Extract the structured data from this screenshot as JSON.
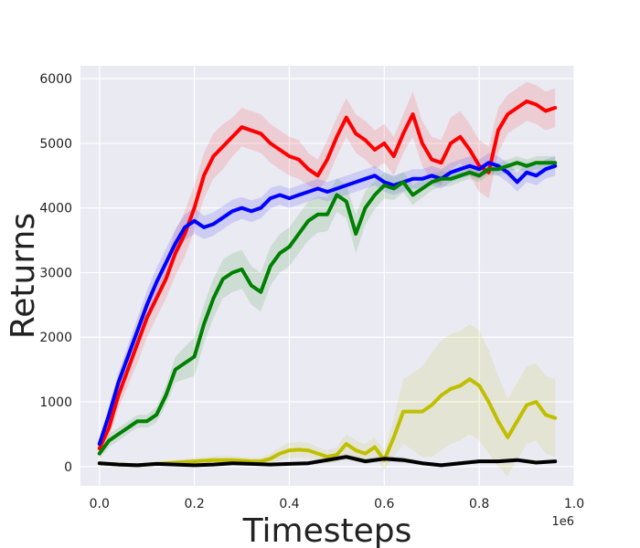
{
  "chart_data": {
    "type": "line",
    "title": "",
    "xlabel": "Timesteps",
    "ylabel": "Returns",
    "x_offset_label": "1e6",
    "xlim": [
      -0.04,
      1.0
    ],
    "ylim": [
      -300,
      6200
    ],
    "xticks": [
      0.0,
      0.2,
      0.4,
      0.6,
      0.8,
      1.0
    ],
    "xtick_labels": [
      "0.0",
      "0.2",
      "0.4",
      "0.6",
      "0.8",
      "1.0"
    ],
    "yticks": [
      0,
      1000,
      2000,
      3000,
      4000,
      5000,
      6000
    ],
    "ytick_labels": [
      "0",
      "1000",
      "2000",
      "3000",
      "4000",
      "5000",
      "6000"
    ],
    "grid": true,
    "background": "#EAEAF2",
    "series": [
      {
        "color": "#FF0000",
        "x": [
          0.0,
          0.02,
          0.04,
          0.06,
          0.08,
          0.1,
          0.12,
          0.14,
          0.16,
          0.18,
          0.2,
          0.22,
          0.24,
          0.26,
          0.28,
          0.3,
          0.32,
          0.34,
          0.36,
          0.38,
          0.4,
          0.42,
          0.44,
          0.46,
          0.48,
          0.5,
          0.52,
          0.54,
          0.56,
          0.58,
          0.6,
          0.62,
          0.64,
          0.66,
          0.68,
          0.7,
          0.72,
          0.74,
          0.76,
          0.78,
          0.8,
          0.82,
          0.84,
          0.86,
          0.88,
          0.9,
          0.92,
          0.94,
          0.96
        ],
        "y": [
          280,
          600,
          1100,
          1500,
          1900,
          2300,
          2600,
          2900,
          3300,
          3600,
          4000,
          4500,
          4800,
          4950,
          5100,
          5250,
          5200,
          5150,
          5000,
          4900,
          4800,
          4750,
          4600,
          4500,
          4750,
          5100,
          5400,
          5150,
          5050,
          4900,
          5000,
          4800,
          5150,
          5450,
          5000,
          4750,
          4700,
          5000,
          5100,
          4900,
          4650,
          4550,
          5200,
          5450,
          5550,
          5650,
          5600,
          5500,
          5550
        ],
        "band": [
          100,
          150,
          200,
          250,
          300,
          300,
          300,
          300,
          350,
          350,
          350,
          350,
          350,
          350,
          300,
          300,
          300,
          300,
          300,
          300,
          300,
          300,
          250,
          250,
          300,
          300,
          300,
          300,
          300,
          300,
          300,
          300,
          300,
          350,
          350,
          350,
          350,
          400,
          400,
          400,
          400,
          400,
          350,
          300,
          300,
          300,
          300,
          300,
          300
        ]
      },
      {
        "color": "#0000FF",
        "x": [
          0.0,
          0.02,
          0.04,
          0.06,
          0.08,
          0.1,
          0.12,
          0.14,
          0.16,
          0.18,
          0.2,
          0.22,
          0.24,
          0.26,
          0.28,
          0.3,
          0.32,
          0.34,
          0.36,
          0.38,
          0.4,
          0.42,
          0.44,
          0.46,
          0.48,
          0.5,
          0.52,
          0.54,
          0.56,
          0.58,
          0.6,
          0.62,
          0.64,
          0.66,
          0.68,
          0.7,
          0.72,
          0.74,
          0.76,
          0.78,
          0.8,
          0.82,
          0.84,
          0.86,
          0.88,
          0.9,
          0.92,
          0.94,
          0.96
        ],
        "y": [
          350,
          800,
          1300,
          1700,
          2100,
          2500,
          2850,
          3150,
          3450,
          3700,
          3800,
          3700,
          3750,
          3850,
          3950,
          4000,
          3950,
          4000,
          4150,
          4200,
          4150,
          4200,
          4250,
          4300,
          4250,
          4300,
          4350,
          4400,
          4450,
          4500,
          4400,
          4350,
          4400,
          4450,
          4450,
          4500,
          4450,
          4550,
          4600,
          4650,
          4600,
          4700,
          4650,
          4550,
          4400,
          4550,
          4500,
          4600,
          4650
        ],
        "band": [
          80,
          120,
          150,
          180,
          200,
          220,
          220,
          220,
          220,
          200,
          200,
          180,
          180,
          180,
          180,
          170,
          170,
          160,
          160,
          150,
          150,
          150,
          150,
          150,
          150,
          150,
          150,
          150,
          150,
          150,
          150,
          150,
          150,
          150,
          150,
          150,
          150,
          150,
          150,
          150,
          150,
          150,
          150,
          150,
          150,
          150,
          150,
          150,
          150
        ]
      },
      {
        "color": "#008000",
        "x": [
          0.0,
          0.02,
          0.04,
          0.06,
          0.08,
          0.1,
          0.12,
          0.14,
          0.16,
          0.18,
          0.2,
          0.22,
          0.24,
          0.26,
          0.28,
          0.3,
          0.32,
          0.34,
          0.36,
          0.38,
          0.4,
          0.42,
          0.44,
          0.46,
          0.48,
          0.5,
          0.52,
          0.54,
          0.56,
          0.58,
          0.6,
          0.62,
          0.64,
          0.66,
          0.68,
          0.7,
          0.72,
          0.74,
          0.76,
          0.78,
          0.8,
          0.82,
          0.84,
          0.86,
          0.88,
          0.9,
          0.92,
          0.94,
          0.96
        ],
        "y": [
          200,
          400,
          500,
          600,
          700,
          700,
          800,
          1100,
          1500,
          1600,
          1700,
          2200,
          2600,
          2900,
          3000,
          3050,
          2800,
          2700,
          3100,
          3300,
          3400,
          3600,
          3800,
          3900,
          3900,
          4200,
          4100,
          3600,
          4000,
          4200,
          4350,
          4300,
          4400,
          4200,
          4300,
          4400,
          4450,
          4450,
          4500,
          4550,
          4500,
          4600,
          4600,
          4650,
          4700,
          4650,
          4700,
          4700,
          4700
        ],
        "band": [
          80,
          100,
          100,
          100,
          100,
          100,
          120,
          150,
          200,
          250,
          300,
          300,
          300,
          300,
          300,
          300,
          300,
          300,
          300,
          300,
          300,
          300,
          300,
          280,
          260,
          260,
          260,
          300,
          260,
          220,
          200,
          180,
          160,
          150,
          140,
          130,
          120,
          110,
          100,
          100,
          100,
          100,
          100,
          100,
          100,
          100,
          100,
          100,
          100
        ]
      },
      {
        "color": "#BFBF00",
        "x": [
          0.0,
          0.04,
          0.08,
          0.12,
          0.16,
          0.2,
          0.24,
          0.28,
          0.3,
          0.32,
          0.34,
          0.36,
          0.38,
          0.4,
          0.42,
          0.44,
          0.46,
          0.48,
          0.5,
          0.52,
          0.54,
          0.56,
          0.58,
          0.6,
          0.62,
          0.64,
          0.66,
          0.68,
          0.7,
          0.72,
          0.74,
          0.76,
          0.78,
          0.8,
          0.82,
          0.84,
          0.86,
          0.88,
          0.9,
          0.92,
          0.94,
          0.96
        ],
        "y": [
          50,
          30,
          20,
          40,
          60,
          80,
          100,
          100,
          90,
          80,
          80,
          120,
          200,
          250,
          260,
          250,
          200,
          150,
          180,
          350,
          250,
          200,
          300,
          100,
          450,
          850,
          850,
          850,
          950,
          1100,
          1200,
          1250,
          1350,
          1250,
          1000,
          700,
          450,
          700,
          950,
          1000,
          800,
          750
        ],
        "band": [
          20,
          30,
          30,
          30,
          40,
          50,
          60,
          60,
          60,
          60,
          60,
          80,
          100,
          120,
          120,
          120,
          100,
          100,
          120,
          150,
          150,
          150,
          150,
          150,
          300,
          500,
          600,
          700,
          800,
          850,
          850,
          850,
          850,
          850,
          800,
          700,
          600,
          600,
          600,
          600,
          600,
          600
        ]
      },
      {
        "color": "#000000",
        "x": [
          0.0,
          0.04,
          0.08,
          0.12,
          0.16,
          0.2,
          0.24,
          0.28,
          0.32,
          0.36,
          0.4,
          0.44,
          0.48,
          0.52,
          0.56,
          0.6,
          0.64,
          0.68,
          0.72,
          0.76,
          0.8,
          0.84,
          0.88,
          0.92,
          0.96
        ],
        "y": [
          50,
          30,
          20,
          40,
          30,
          20,
          30,
          50,
          40,
          30,
          40,
          50,
          100,
          150,
          80,
          120,
          100,
          50,
          20,
          50,
          80,
          80,
          100,
          60,
          80
        ],
        "band": [
          20,
          20,
          20,
          20,
          20,
          20,
          20,
          20,
          20,
          20,
          20,
          30,
          40,
          40,
          40,
          40,
          40,
          30,
          30,
          30,
          30,
          30,
          30,
          30,
          30
        ]
      }
    ]
  }
}
